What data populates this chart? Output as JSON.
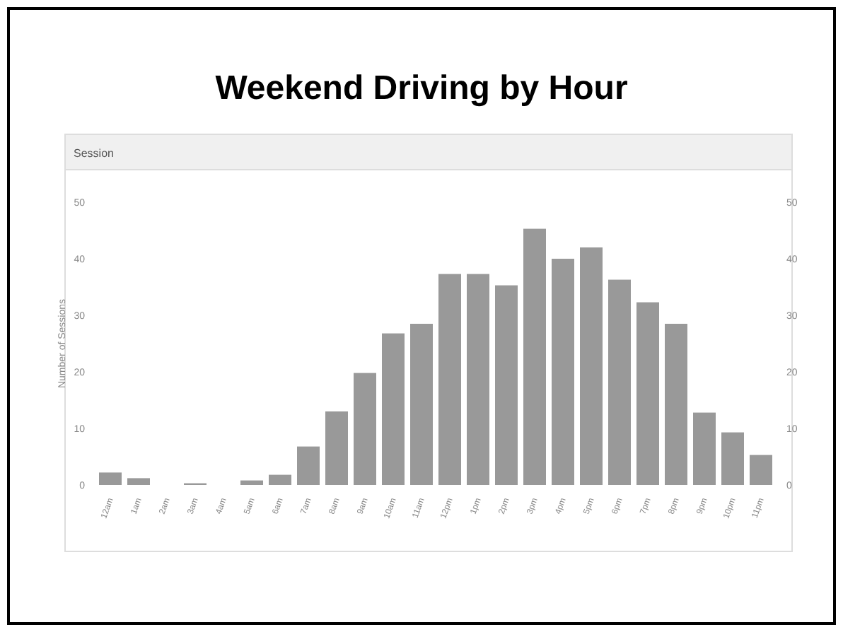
{
  "chart_data": {
    "type": "bar",
    "title": "Weekend Driving by Hour",
    "subtitle": "Session",
    "ylabel": "Number of Sessions",
    "categories": [
      "12am",
      "1am",
      "2am",
      "3am",
      "4am",
      "5am",
      "6am",
      "7am",
      "8am",
      "9am",
      "10am",
      "11am",
      "12pm",
      "1pm",
      "2pm",
      "3pm",
      "4pm",
      "5pm",
      "6pm",
      "7pm",
      "8pm",
      "9pm",
      "10pm",
      "11pm"
    ],
    "values": [
      2.2,
      1.2,
      0,
      0.3,
      0,
      0.8,
      1.8,
      6.8,
      13,
      19.8,
      26.8,
      28.5,
      37.3,
      37.3,
      35.3,
      45.3,
      40,
      42,
      36.3,
      32.3,
      28.5,
      12.8,
      9.3,
      5.3
    ],
    "color": "#999999",
    "ylim": [
      0,
      50
    ],
    "yticks": [
      0,
      10,
      20,
      30,
      40,
      50
    ],
    "y2lim": [
      0,
      50
    ],
    "y2ticks": [
      0,
      10,
      20,
      30,
      40,
      50
    ],
    "grid": false
  }
}
